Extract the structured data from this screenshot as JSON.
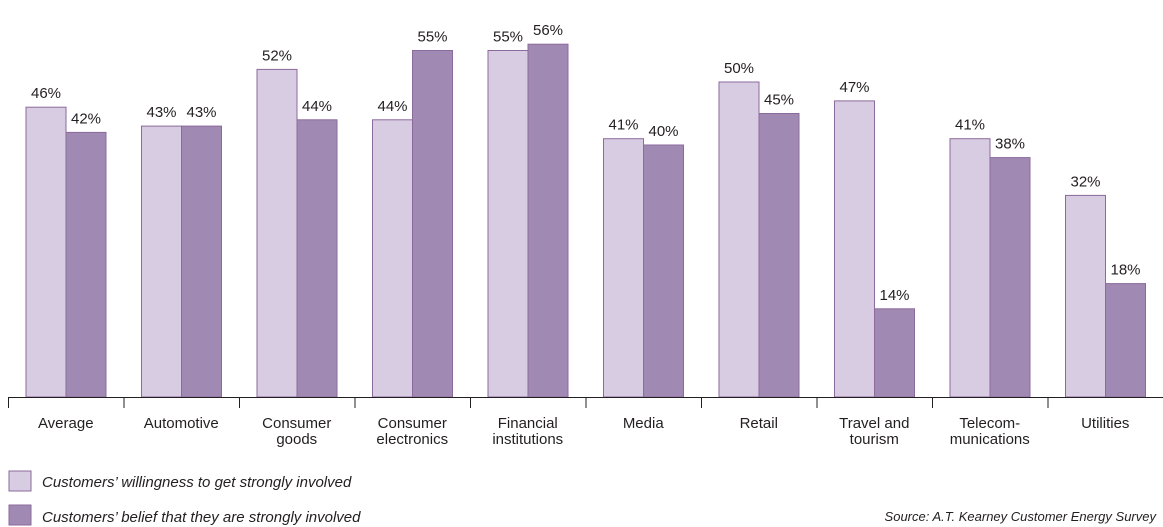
{
  "chart_data": {
    "type": "bar",
    "categories": [
      [
        "Average"
      ],
      [
        "Automotive"
      ],
      [
        "Consumer",
        "goods"
      ],
      [
        "Consumer",
        "electronics"
      ],
      [
        "Financial",
        "institutions"
      ],
      [
        "Media"
      ],
      [
        "Retail"
      ],
      [
        "Travel and",
        "tourism"
      ],
      [
        "Telecom-",
        "munications"
      ],
      [
        "Utilities"
      ]
    ],
    "series": [
      {
        "name": "Customers’ willingness to get strongly involved",
        "values": [
          46,
          43,
          52,
          44,
          55,
          41,
          50,
          47,
          41,
          32
        ],
        "labels": [
          "46%",
          "43%",
          "52%",
          "44%",
          "55%",
          "41%",
          "50%",
          "47%",
          "41%",
          "32%"
        ],
        "color": "#d8cce2"
      },
      {
        "name": "Customers’  belief that they are strongly involved",
        "values": [
          42,
          43,
          44,
          55,
          56,
          40,
          45,
          14,
          38,
          18
        ],
        "labels": [
          "42%",
          "43%",
          "44%",
          "55%",
          "56%",
          "40%",
          "45%",
          "14%",
          "38%",
          "18%"
        ],
        "color": "#a08ab3"
      }
    ],
    "ylim": [
      0,
      62
    ],
    "grid": false,
    "legend_position": "bottom-left",
    "title": "",
    "xlabel": "",
    "ylabel": ""
  },
  "source": "Source: A.T. Kearney Customer Energy Survey"
}
